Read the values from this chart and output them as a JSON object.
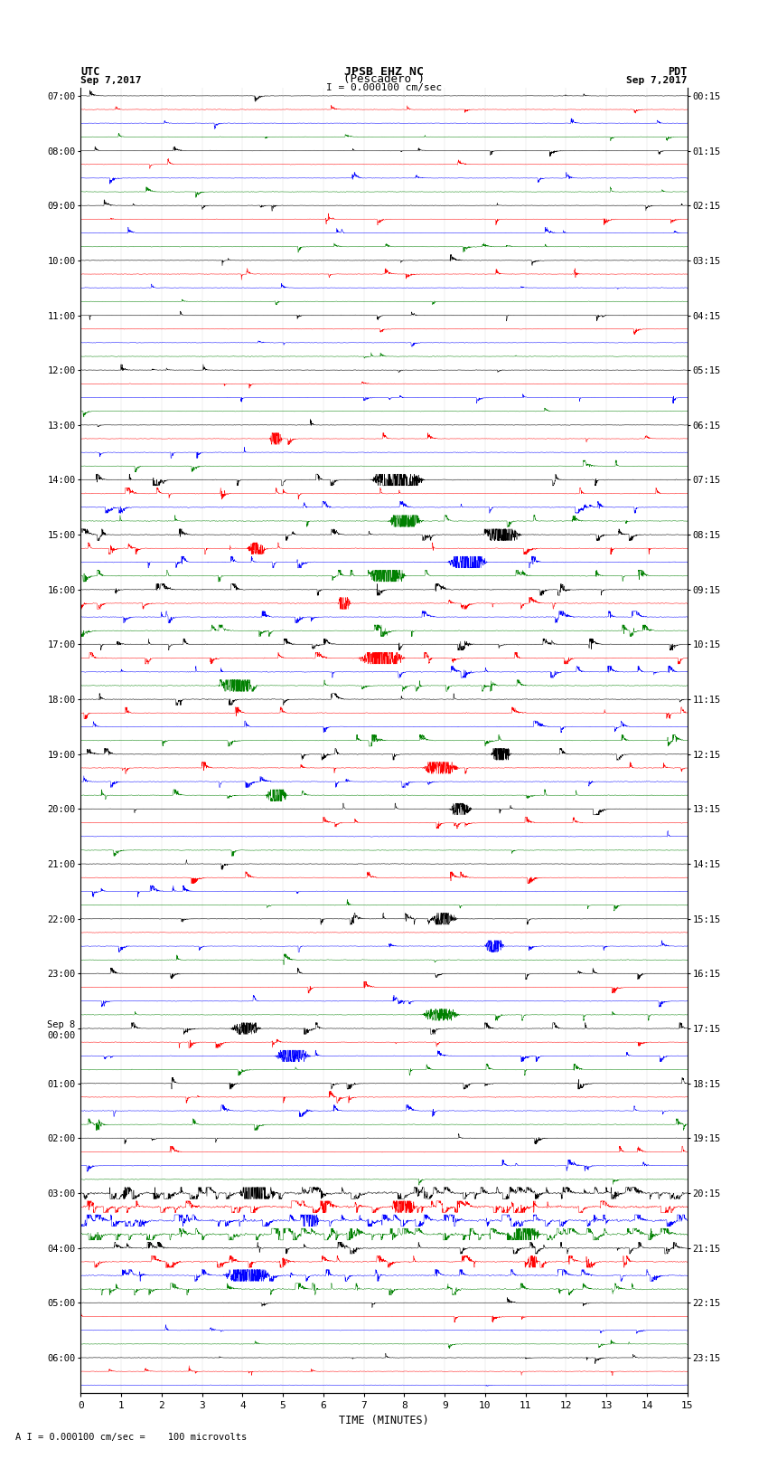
{
  "title_line1": "JPSB EHZ NC",
  "title_line2": "(Pescadero )",
  "scale_bar_text": "I = 0.000100 cm/sec",
  "left_header_line1": "UTC",
  "left_header_line2": "Sep 7,2017",
  "right_header_line1": "PDT",
  "right_header_line2": "Sep 7,2017",
  "xlabel": "TIME (MINUTES)",
  "footer": "A I = 0.000100 cm/sec =    100 microvolts",
  "utc_labels": [
    "07:00",
    "",
    "",
    "",
    "08:00",
    "",
    "",
    "",
    "09:00",
    "",
    "",
    "",
    "10:00",
    "",
    "",
    "",
    "11:00",
    "",
    "",
    "",
    "12:00",
    "",
    "",
    "",
    "13:00",
    "",
    "",
    "",
    "14:00",
    "",
    "",
    "",
    "15:00",
    "",
    "",
    "",
    "16:00",
    "",
    "",
    "",
    "17:00",
    "",
    "",
    "",
    "18:00",
    "",
    "",
    "",
    "19:00",
    "",
    "",
    "",
    "20:00",
    "",
    "",
    "",
    "21:00",
    "",
    "",
    "",
    "22:00",
    "",
    "",
    "",
    "23:00",
    "",
    "",
    "",
    "Sep 8\n00:00",
    "",
    "",
    "",
    "01:00",
    "",
    "",
    "",
    "02:00",
    "",
    "",
    "",
    "03:00",
    "",
    "",
    "",
    "04:00",
    "",
    "",
    "",
    "05:00",
    "",
    "",
    "",
    "06:00",
    "",
    ""
  ],
  "pdt_labels": [
    "00:15",
    "",
    "",
    "",
    "01:15",
    "",
    "",
    "",
    "02:15",
    "",
    "",
    "",
    "03:15",
    "",
    "",
    "",
    "04:15",
    "",
    "",
    "",
    "05:15",
    "",
    "",
    "",
    "06:15",
    "",
    "",
    "",
    "07:15",
    "",
    "",
    "",
    "08:15",
    "",
    "",
    "",
    "09:15",
    "",
    "",
    "",
    "10:15",
    "",
    "",
    "",
    "11:15",
    "",
    "",
    "",
    "12:15",
    "",
    "",
    "",
    "13:15",
    "",
    "",
    "",
    "14:15",
    "",
    "",
    "",
    "15:15",
    "",
    "",
    "",
    "16:15",
    "",
    "",
    "",
    "17:15",
    "",
    "",
    "",
    "18:15",
    "",
    "",
    "",
    "19:15",
    "",
    "",
    "",
    "20:15",
    "",
    "",
    "",
    "21:15",
    "",
    "",
    "",
    "22:15",
    "",
    "",
    "",
    "23:15",
    "",
    ""
  ],
  "trace_colors": [
    "black",
    "red",
    "blue",
    "green"
  ],
  "num_traces": 95,
  "xmin": 0,
  "xmax": 15,
  "bg_color": "white",
  "trace_lw": 0.35,
  "seed": 12345
}
